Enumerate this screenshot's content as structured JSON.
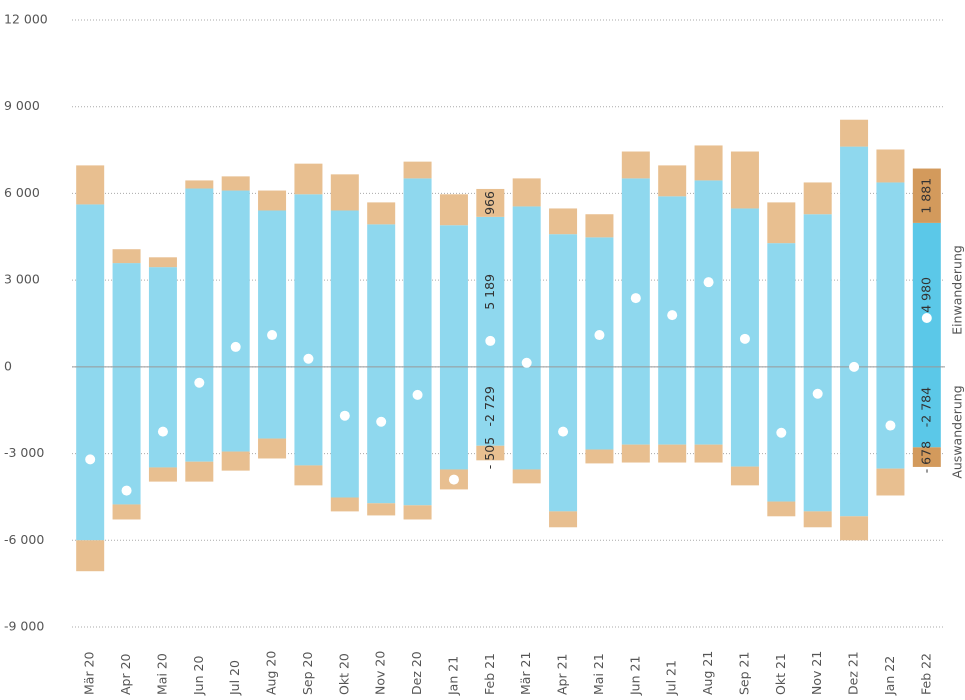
{
  "chart_data": {
    "type": "bar",
    "categories": [
      "Mär 20",
      "Apr 20",
      "Mai 20",
      "Jun 20",
      "Jul 20",
      "Aug 20",
      "Sep 20",
      "Okt 20",
      "Nov 20",
      "Dez 20",
      "Jan 21",
      "Feb 21",
      "Mär 21",
      "Apr 21",
      "Mai 21",
      "Jun 21",
      "Jul 21",
      "Aug 21",
      "Sep 21",
      "Okt 21",
      "Nov 21",
      "Dez 21",
      "Jan 22",
      "Feb 22"
    ],
    "series": [
      {
        "color": "#8fd8ee",
        "colors": [
          "#8fd8ee",
          "#8fd8ee",
          "#8fd8ee",
          "#8fd8ee",
          "#8fd8ee",
          "#8fd8ee",
          "#8fd8ee",
          "#8fd8ee",
          "#8fd8ee",
          "#8fd8ee",
          "#8fd8ee",
          "#8fd8ee",
          "#8fd8ee",
          "#8fd8ee",
          "#8fd8ee",
          "#8fd8ee",
          "#8fd8ee",
          "#8fd8ee",
          "#8fd8ee",
          "#8fd8ee",
          "#8fd8ee",
          "#8fd8ee",
          "#8fd8ee",
          "#5bc8e8"
        ],
        "values": [
          5620,
          3590,
          3450,
          6170,
          6100,
          5410,
          5970,
          5410,
          4930,
          6520,
          4900,
          5189,
          5550,
          4590,
          4480,
          6520,
          5900,
          6450,
          5480,
          4280,
          5280,
          7620,
          6380,
          4980
        ],
        "value_labels": [
          null,
          null,
          null,
          null,
          null,
          null,
          null,
          null,
          null,
          null,
          null,
          "5 189",
          null,
          null,
          null,
          null,
          null,
          null,
          null,
          null,
          null,
          null,
          null,
          "4 980"
        ]
      },
      {
        "color": "#e8bf90",
        "colors": [
          "#e8bf90",
          "#e8bf90",
          "#e8bf90",
          "#e8bf90",
          "#e8bf90",
          "#e8bf90",
          "#e8bf90",
          "#e8bf90",
          "#e8bf90",
          "#e8bf90",
          "#e8bf90",
          "#e8bf90",
          "#e8bf90",
          "#e8bf90",
          "#e8bf90",
          "#e8bf90",
          "#e8bf90",
          "#e8bf90",
          "#e8bf90",
          "#e8bf90",
          "#e8bf90",
          "#e8bf90",
          "#e8bf90",
          "#d39a5c"
        ],
        "values": [
          1350,
          480,
          340,
          280,
          490,
          690,
          1060,
          1250,
          760,
          580,
          1070,
          966,
          970,
          890,
          800,
          930,
          1070,
          1210,
          1970,
          1410,
          1100,
          930,
          1140,
          1881
        ],
        "value_labels": [
          null,
          null,
          null,
          null,
          null,
          null,
          null,
          null,
          null,
          null,
          null,
          "966",
          null,
          null,
          null,
          null,
          null,
          null,
          null,
          null,
          null,
          null,
          null,
          "1 881"
        ]
      },
      {
        "color": "#8fd8ee",
        "colors": [
          "#8fd8ee",
          "#8fd8ee",
          "#8fd8ee",
          "#8fd8ee",
          "#8fd8ee",
          "#8fd8ee",
          "#8fd8ee",
          "#8fd8ee",
          "#8fd8ee",
          "#8fd8ee",
          "#8fd8ee",
          "#8fd8ee",
          "#8fd8ee",
          "#8fd8ee",
          "#8fd8ee",
          "#8fd8ee",
          "#8fd8ee",
          "#8fd8ee",
          "#8fd8ee",
          "#8fd8ee",
          "#8fd8ee",
          "#8fd8ee",
          "#8fd8ee",
          "#5bc8e8"
        ],
        "values": [
          -6000,
          -4760,
          -3480,
          -3280,
          -2930,
          -2480,
          -3410,
          -4520,
          -4720,
          -4790,
          -3550,
          -2729,
          -3550,
          -5000,
          -2860,
          -2690,
          -2690,
          -2690,
          -3450,
          -4660,
          -5000,
          -5170,
          -3520,
          -2784
        ],
        "value_labels": [
          null,
          null,
          null,
          null,
          null,
          null,
          null,
          null,
          null,
          null,
          null,
          "-2 729",
          null,
          null,
          null,
          null,
          null,
          null,
          null,
          null,
          null,
          null,
          null,
          "-2 784"
        ]
      },
      {
        "color": "#e8bf90",
        "colors": [
          "#e8bf90",
          "#e8bf90",
          "#e8bf90",
          "#e8bf90",
          "#e8bf90",
          "#e8bf90",
          "#e8bf90",
          "#e8bf90",
          "#e8bf90",
          "#e8bf90",
          "#e8bf90",
          "#e8bf90",
          "#e8bf90",
          "#e8bf90",
          "#e8bf90",
          "#e8bf90",
          "#e8bf90",
          "#e8bf90",
          "#e8bf90",
          "#e8bf90",
          "#e8bf90",
          "#e8bf90",
          "#e8bf90",
          "#d39a5c"
        ],
        "values": [
          -1070,
          -520,
          -490,
          -690,
          -660,
          -690,
          -690,
          -480,
          -420,
          -490,
          -690,
          -505,
          -480,
          -550,
          -480,
          -620,
          -620,
          -620,
          -650,
          -510,
          -550,
          -830,
          -930,
          -678
        ],
        "value_labels": [
          null,
          null,
          null,
          null,
          null,
          null,
          null,
          null,
          null,
          null,
          null,
          "- 505",
          null,
          null,
          null,
          null,
          null,
          null,
          null,
          null,
          null,
          null,
          null,
          "- 678"
        ]
      }
    ],
    "points": {
      "type": "scatter",
      "color": "#ffffff",
      "values": [
        -3200,
        -4280,
        -2240,
        -550,
        690,
        1100,
        280,
        -1690,
        -1900,
        -970,
        -3900,
        897,
        140,
        -2240,
        1100,
        2380,
        1790,
        2930,
        970,
        -2280,
        -930,
        0,
        -2030,
        1690
      ]
    },
    "annotations": [
      "Einwanderung",
      "Auswanderung"
    ],
    "ylim": [
      -9000,
      12000
    ],
    "yticks": [
      {
        "value": -9000,
        "label": "-9 000"
      },
      {
        "value": -6000,
        "label": "-6 000"
      },
      {
        "value": -3000,
        "label": "-3 000"
      },
      0,
      {
        "value": 3000,
        "label": "3 000"
      },
      {
        "value": 6000,
        "label": "6 000"
      },
      {
        "value": 9000,
        "label": "9 000"
      },
      {
        "value": 12000,
        "label": "12 000"
      }
    ],
    "grid": true
  }
}
